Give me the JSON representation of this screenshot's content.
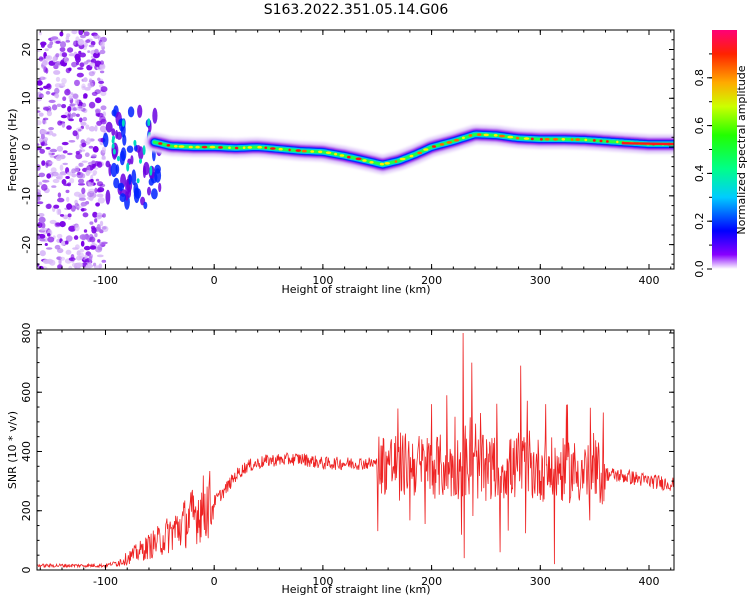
{
  "figure_title": "S163.2022.351.05.14.G06",
  "chart_data": [
    {
      "type": "heatmap",
      "title": "",
      "xlabel": "Height of straight line (km)",
      "ylabel": "Frequency (Hz)",
      "xlim": [
        -163,
        423
      ],
      "ylim": [
        -25,
        24
      ],
      "xticks": [
        -100,
        0,
        100,
        200,
        300,
        400
      ],
      "yticks": [
        -20,
        -10,
        0,
        10,
        20
      ],
      "colorbar": {
        "label": "Normalized spectral amplitude",
        "range": [
          0,
          1
        ],
        "ticks": [
          "0.0",
          "0.2",
          "0.4",
          "0.6",
          "0.8"
        ],
        "colormap": "gist_rainbow_r"
      },
      "ridge": {
        "x": [
          -55,
          -40,
          -20,
          0,
          20,
          40,
          60,
          80,
          100,
          120,
          140,
          155,
          170,
          185,
          200,
          220,
          240,
          260,
          280,
          300,
          320,
          340,
          360,
          380,
          400,
          423
        ],
        "freq": [
          1,
          0.2,
          0,
          0,
          -0.2,
          0,
          -0.4,
          -0.8,
          -1,
          -1.8,
          -2.8,
          -3.6,
          -2.8,
          -1.5,
          0,
          1.2,
          2.6,
          2.4,
          1.8,
          1.6,
          1.6,
          1.5,
          1.2,
          0.9,
          0.6,
          0.6
        ]
      },
      "noise_region_x": [
        -163,
        -100
      ]
    },
    {
      "type": "line",
      "title": "",
      "xlabel": "Height of straight line (km)",
      "ylabel": "SNR (10 * v/v)",
      "xlim": [
        -163,
        423
      ],
      "ylim": [
        0,
        810
      ],
      "xticks": [
        -100,
        0,
        100,
        200,
        300,
        400
      ],
      "yticks": [
        0,
        200,
        400,
        600,
        800
      ],
      "series": [
        {
          "color": "#ee2222",
          "envelope": {
            "x": [
              -163,
              -100,
              -85,
              -70,
              -50,
              -30,
              -20,
              -10,
              0,
              10,
              20,
              30,
              50,
              80,
              100,
              130,
              160,
              200,
              250,
              300,
              350,
              380,
              400,
              423
            ],
            "snr": [
              15,
              15,
              30,
              60,
              100,
              150,
              180,
              210,
              230,
              270,
              320,
              350,
              370,
              375,
              360,
              360,
              360,
              350,
              345,
              340,
              330,
              315,
              300,
              290
            ]
          },
          "spikes": [
            {
              "x": 229,
              "snr": 800
            },
            {
              "x": 237,
              "snr": 700
            },
            {
              "x": 282,
              "snr": 690
            },
            {
              "x": 214,
              "snr": 590
            },
            {
              "x": 200,
              "snr": 560
            },
            {
              "x": 305,
              "snr": 560
            },
            {
              "x": 245,
              "snr": 530
            },
            {
              "x": 230,
              "snr": 40
            },
            {
              "x": 263,
              "snr": 60
            },
            {
              "x": 313,
              "snr": 20
            }
          ]
        }
      ]
    }
  ]
}
